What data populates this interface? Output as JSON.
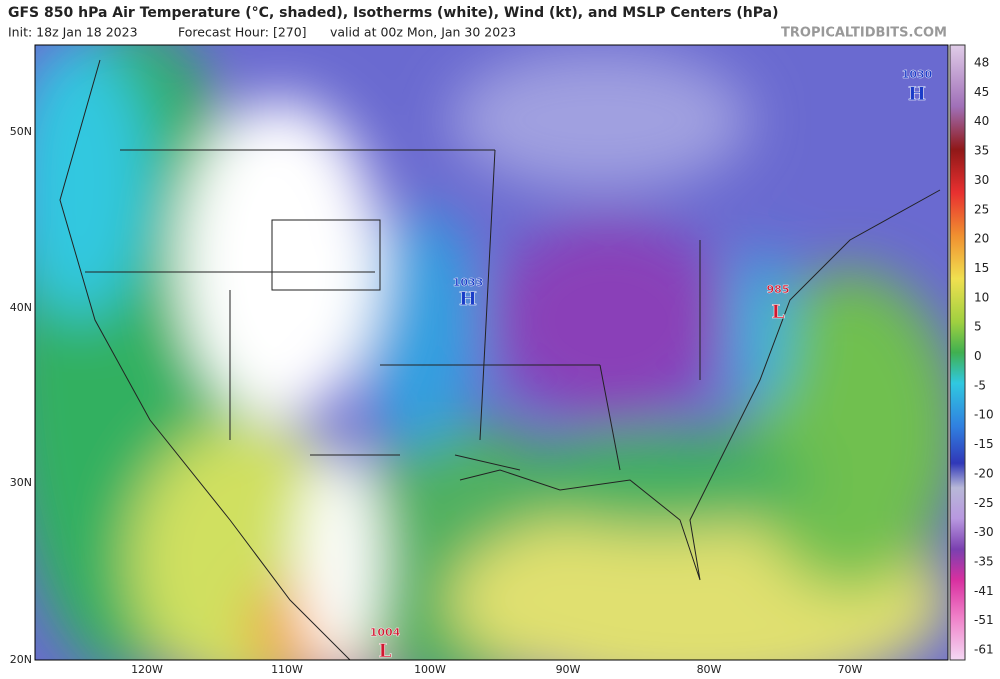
{
  "header": {
    "title": "GFS 850 hPa Air Temperature (°C, shaded), Isotherms (white), Wind (kt), and MSLP Centers (hPa)",
    "init": "Init: 18z Jan 18 2023",
    "forecast_hour": "Forecast Hour: [270]",
    "valid": "valid at 00z Mon, Jan 30 2023",
    "brand": "TROPICALTIDBITS.COM"
  },
  "map": {
    "lat_labels": [
      "50N",
      "40N",
      "30N",
      "20N"
    ],
    "lon_labels": [
      "120W",
      "110W",
      "100W",
      "90W",
      "80W",
      "70W"
    ],
    "pressure_centers": [
      {
        "value": "1030",
        "kind": "H"
      },
      {
        "value": "1033",
        "kind": "H"
      },
      {
        "value": "985",
        "kind": "L"
      },
      {
        "value": "1004",
        "kind": "L"
      }
    ]
  },
  "colorbar": {
    "labels": [
      "48",
      "45",
      "40",
      "35",
      "30",
      "25",
      "20",
      "15",
      "10",
      "5",
      "0",
      "-5",
      "-10",
      "-15",
      "-20",
      "-25",
      "-30",
      "-35",
      "-41",
      "-51",
      "-61"
    ]
  }
}
